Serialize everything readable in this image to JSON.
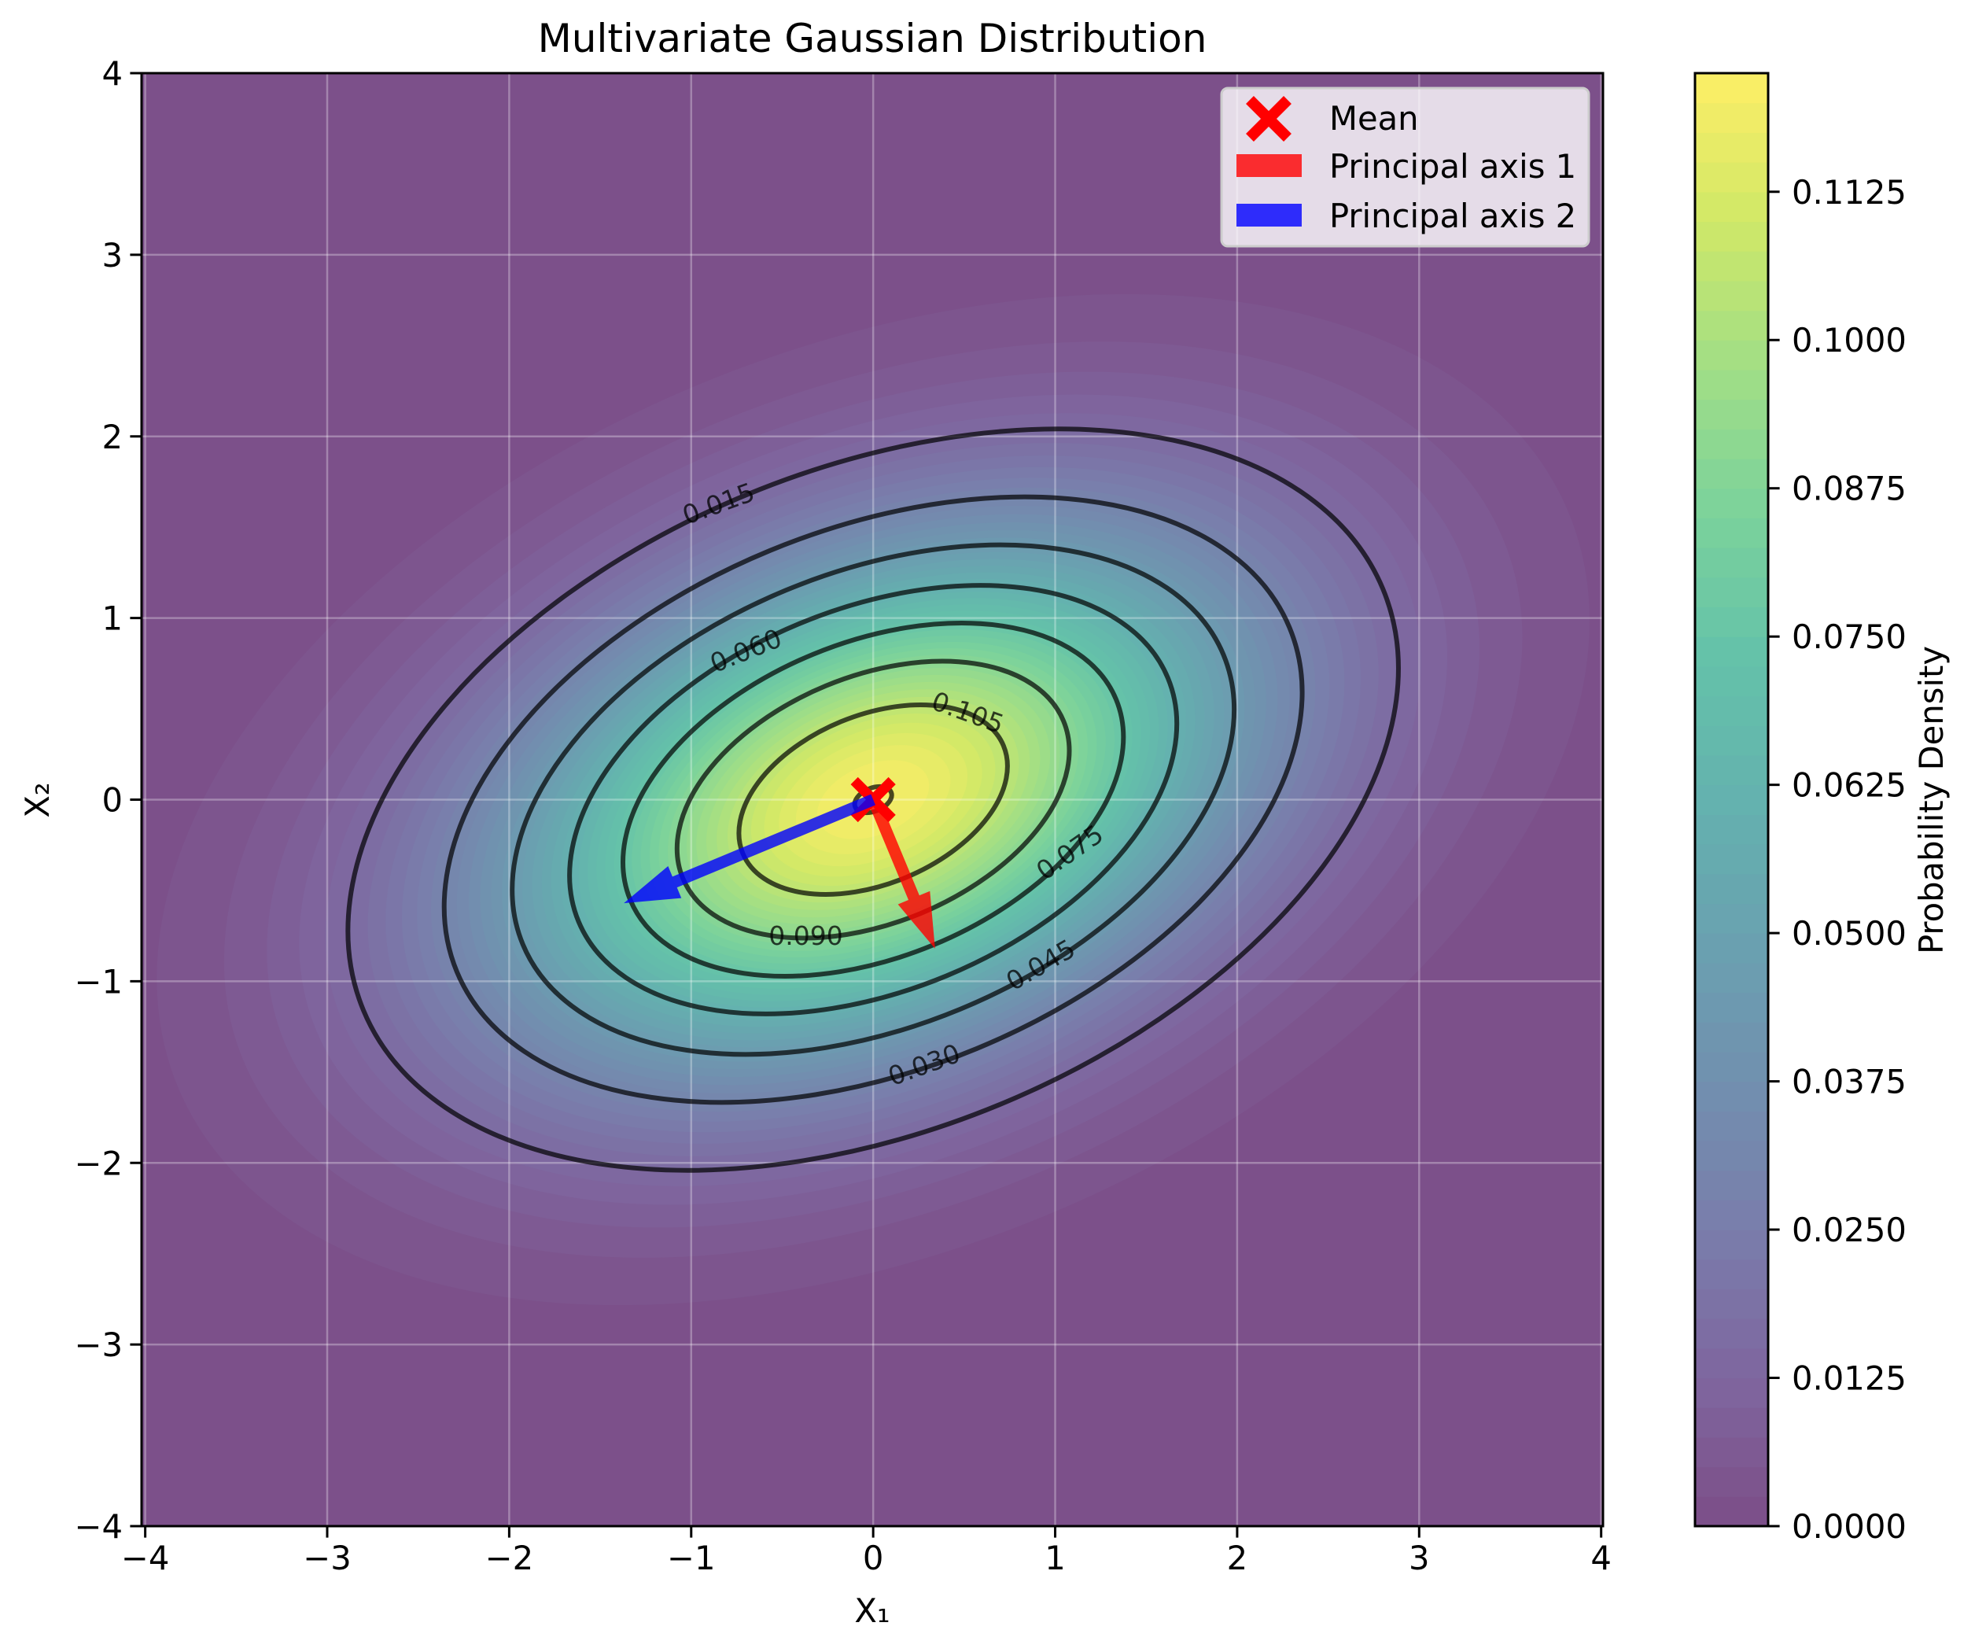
{
  "chart_data": {
    "type": "contour",
    "title": "Multivariate Gaussian Distribution",
    "xlabel": "X₁",
    "ylabel": "X₂",
    "xlim": [
      -4,
      4
    ],
    "ylim": [
      -4,
      4
    ],
    "xticks": [
      -4,
      -3,
      -2,
      -1,
      0,
      1,
      2,
      3,
      4
    ],
    "xtick_labels": [
      "−4",
      "−3",
      "−2",
      "−1",
      "0",
      "1",
      "2",
      "3",
      "4"
    ],
    "yticks": [
      -4,
      -3,
      -2,
      -1,
      0,
      1,
      2,
      3,
      4
    ],
    "ytick_labels": [
      "−4",
      "−3",
      "−2",
      "−1",
      "0",
      "1",
      "2",
      "3",
      "4"
    ],
    "grid": true,
    "colormap": "viridis",
    "fill_alpha": 0.7,
    "mean": [
      0,
      0
    ],
    "covariance": [
      [
        2,
        0.5
      ],
      [
        0.5,
        1
      ]
    ],
    "fill_levels": {
      "min": 0,
      "max": 0.1225,
      "step": 0.0025
    },
    "line_levels": [
      0.015,
      0.03,
      0.045,
      0.06,
      0.075,
      0.09,
      0.105,
      0.12
    ],
    "contour_labels": [
      {
        "text": "0.015",
        "x": -0.85,
        "y": 1.63
      },
      {
        "text": "0.060",
        "x": -0.7,
        "y": 0.82
      },
      {
        "text": "0.105",
        "x": 0.52,
        "y": 0.48
      },
      {
        "text": "0.075",
        "x": 1.08,
        "y": -0.29
      },
      {
        "text": "0.045",
        "x": 0.92,
        "y": -0.91
      },
      {
        "text": "0.030",
        "x": 0.28,
        "y": -1.46
      },
      {
        "text": "0.090",
        "x": -0.37,
        "y": -0.75
      }
    ],
    "principal_axes": [
      {
        "name": "Principal axis 1",
        "vector": [
          0.34,
          -0.82
        ],
        "color": "#ff0000"
      },
      {
        "name": "Principal axis 2",
        "vector": [
          -1.37,
          -0.57
        ],
        "color": "#0000ff"
      }
    ],
    "legend": {
      "position": "upper right",
      "entries": [
        {
          "label": "Mean",
          "marker": "x",
          "color": "#ff0000"
        },
        {
          "label": "Principal axis 1",
          "marker": "patch",
          "color": "#ff0000"
        },
        {
          "label": "Principal axis 2",
          "marker": "patch",
          "color": "#0000ff"
        }
      ]
    },
    "colorbar": {
      "label": "Probability Density",
      "range": [
        0,
        0.1225
      ],
      "ticks": [
        0,
        0.0125,
        0.025,
        0.0375,
        0.05,
        0.0625,
        0.075,
        0.0875,
        0.1,
        0.1125
      ],
      "tick_labels": [
        "0.0000",
        "0.0125",
        "0.0250",
        "0.0375",
        "0.0500",
        "0.0625",
        "0.0750",
        "0.0875",
        "0.1000",
        "0.1125"
      ]
    }
  }
}
